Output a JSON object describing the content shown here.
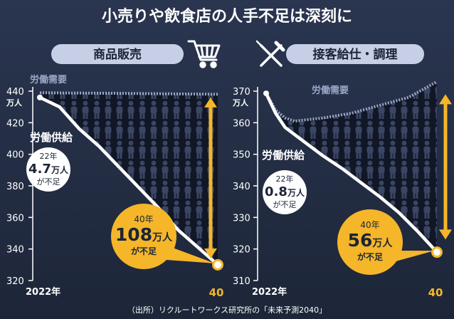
{
  "title": "小売りや飲食店の人手不足は深刻に",
  "source": "（出所）リクルートワークス研究所の「未来予測2040」",
  "colors": {
    "background": "#1f2a3e",
    "demand": "#9aa7c6",
    "supply": "#ffffff",
    "gap": "#f5b62a",
    "pill": "#c7cfe6",
    "axis": "#ffffff"
  },
  "chart_data": [
    {
      "type": "line",
      "panel_label": "商品販売",
      "icon": "shopping-cart-icon",
      "x": [
        2022,
        2040
      ],
      "x_tick_labels": [
        "2022年",
        "40"
      ],
      "ylim": [
        320,
        440
      ],
      "y_ticks": [
        320,
        340,
        360,
        380,
        400,
        420,
        440
      ],
      "y_unit": "万人",
      "series": [
        {
          "name": "労働需要",
          "points": [
            [
              2022,
              439
            ],
            [
              2025,
              438.8
            ],
            [
              2030,
              438.6
            ],
            [
              2035,
              438.3
            ],
            [
              2040,
              438
            ]
          ]
        },
        {
          "name": "労働供給",
          "points": [
            [
              2022,
              436
            ],
            [
              2024,
              430
            ],
            [
              2026,
              416
            ],
            [
              2028,
              405
            ],
            [
              2030,
              392
            ],
            [
              2032,
              379
            ],
            [
              2034,
              366
            ],
            [
              2036,
              352
            ],
            [
              2038,
              341
            ],
            [
              2040,
              330
            ]
          ]
        }
      ],
      "annotations": [
        {
          "year_label": "22年",
          "value": "4.7",
          "unit": "万人",
          "suffix": "が不足"
        },
        {
          "year_label": "40年",
          "value": "108",
          "unit": "万人",
          "suffix": "が不足"
        }
      ]
    },
    {
      "type": "line",
      "panel_label": "接客給仕・調理",
      "icon": "fork-knife-icon",
      "x": [
        2022,
        2040
      ],
      "x_tick_labels": [
        "2022年",
        "40"
      ],
      "ylim": [
        310,
        370
      ],
      "y_ticks": [
        310,
        320,
        330,
        340,
        350,
        360,
        370
      ],
      "y_unit": "万人",
      "series": [
        {
          "name": "労働需要",
          "points": [
            [
              2022,
              369.3
            ],
            [
              2023,
              364
            ],
            [
              2024,
              361.5
            ],
            [
              2025,
              360.5
            ],
            [
              2028,
              361.5
            ],
            [
              2031,
              363
            ],
            [
              2034,
              365.5
            ],
            [
              2037,
              368
            ],
            [
              2040,
              373
            ]
          ]
        },
        {
          "name": "労働供給",
          "points": [
            [
              2022,
              369.3
            ],
            [
              2023,
              363
            ],
            [
              2024,
              358.5
            ],
            [
              2026,
              354
            ],
            [
              2028,
              349.5
            ],
            [
              2030,
              345.5
            ],
            [
              2032,
              341
            ],
            [
              2034,
              336.5
            ],
            [
              2036,
              331.5
            ],
            [
              2038,
              325.5
            ],
            [
              2040,
              319
            ]
          ]
        }
      ],
      "annotations": [
        {
          "year_label": "22年",
          "value": "0.8",
          "unit": "万人",
          "suffix": "が不足"
        },
        {
          "year_label": "40年",
          "value": "56",
          "unit": "万人",
          "suffix": "が不足"
        }
      ]
    }
  ]
}
